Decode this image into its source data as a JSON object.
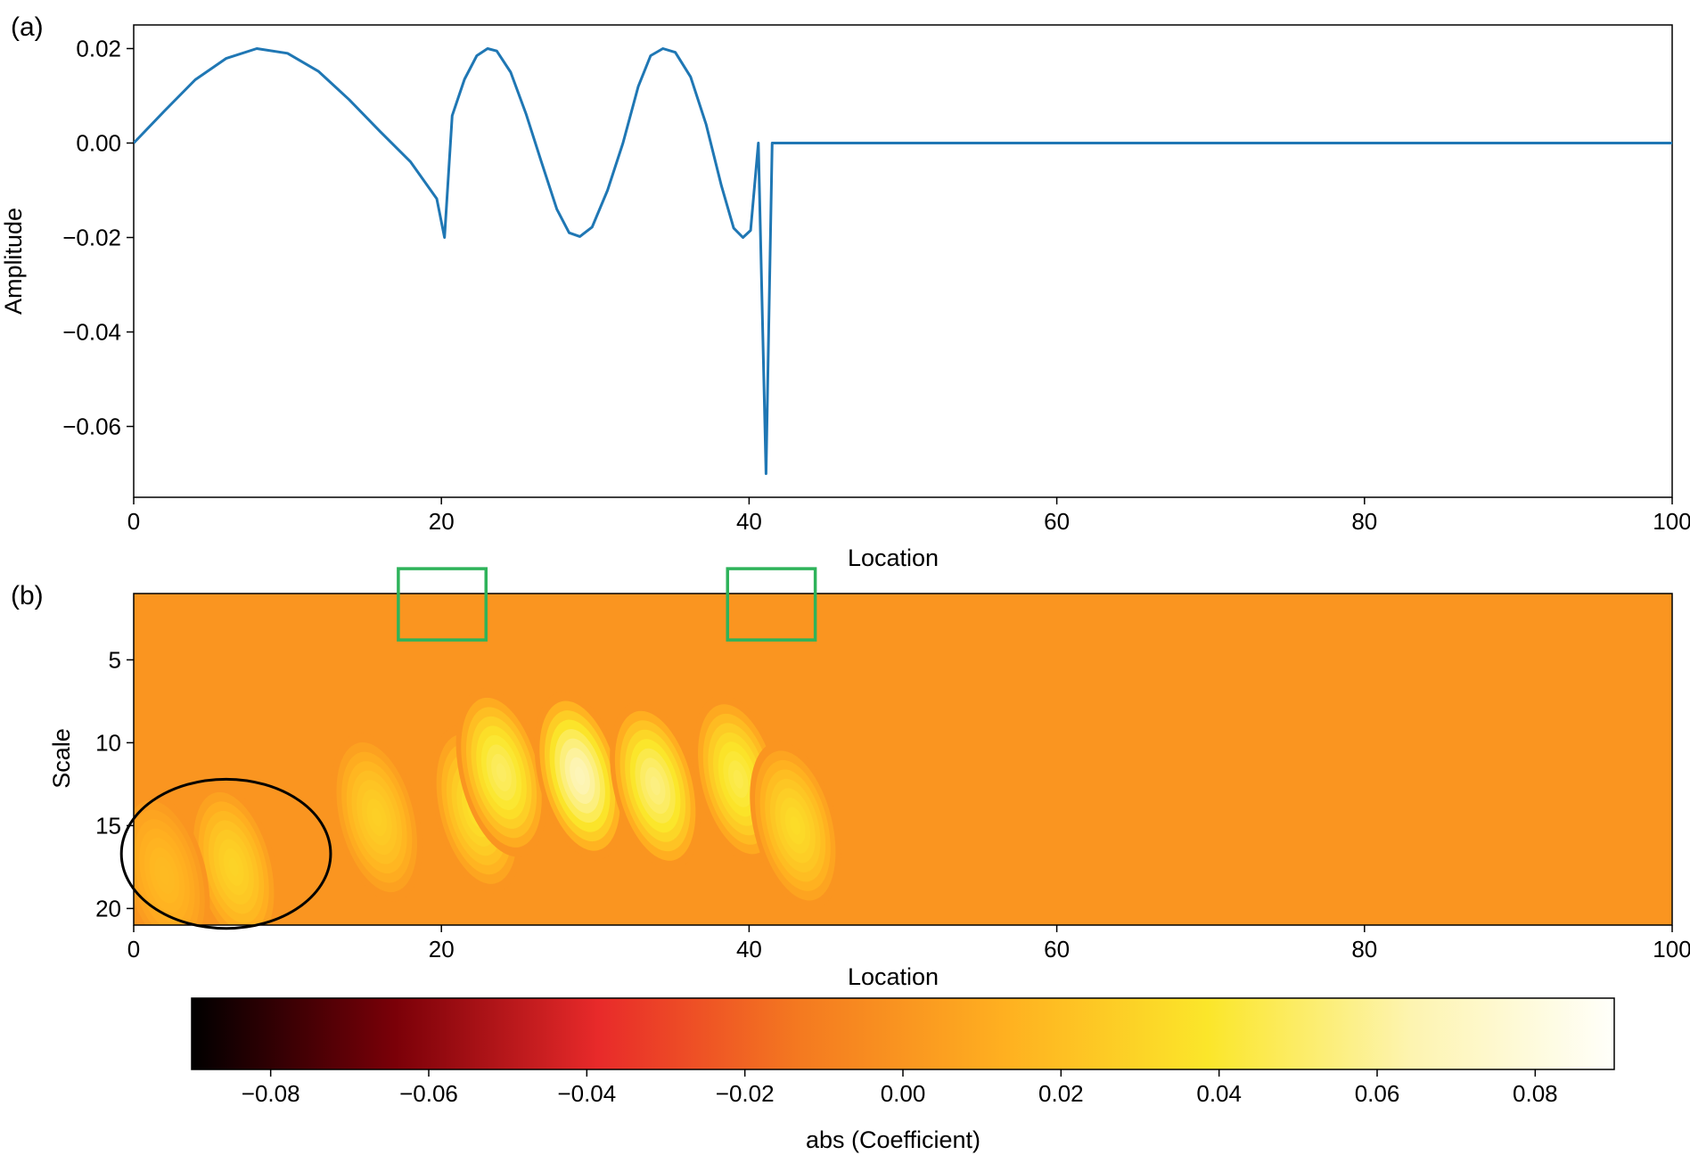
{
  "chart_data": [
    {
      "type": "line",
      "panel_label": "(a)",
      "xlabel": "Location",
      "ylabel": "Amplitude",
      "xlim": [
        0,
        100
      ],
      "ylim": [
        -0.075,
        0.025
      ],
      "x_ticks": [
        0,
        20,
        40,
        60,
        80,
        100
      ],
      "x_tick_labels": [
        "0",
        "20",
        "40",
        "60",
        "80",
        "100"
      ],
      "y_ticks": [
        0.02,
        0.0,
        -0.02,
        -0.04,
        -0.06
      ],
      "y_tick_labels": [
        "0.02",
        "0.00",
        "−0.02",
        "−0.04",
        "−0.06"
      ],
      "grid": false,
      "series": [
        {
          "color": "#1f77b4",
          "x": [
            0,
            2,
            4,
            6,
            8,
            10,
            12,
            14,
            16,
            18,
            19.7,
            20.2,
            20.7,
            21.5,
            22.3,
            23,
            23.6,
            24.5,
            25.5,
            26.5,
            27.5,
            28.3,
            29,
            29.8,
            30.8,
            31.8,
            32.8,
            33.6,
            34.4,
            35.2,
            36.2,
            37.2,
            38.2,
            39,
            39.6,
            40.1,
            40.6,
            41.1,
            41.5,
            45,
            50,
            60,
            70,
            80,
            90,
            100
          ],
          "y": [
            0.0,
            0.0068,
            0.0134,
            0.0179,
            0.02,
            0.019,
            0.0152,
            0.0092,
            0.0025,
            -0.004,
            -0.0118,
            -0.02,
            0.0058,
            0.0135,
            0.0185,
            0.02,
            0.0195,
            0.015,
            0.0062,
            -0.004,
            -0.014,
            -0.019,
            -0.0198,
            -0.0178,
            -0.01,
            0.0,
            0.012,
            0.0185,
            0.02,
            0.0192,
            0.014,
            0.004,
            -0.009,
            -0.018,
            -0.02,
            -0.0185,
            0.0,
            -0.07,
            0.0,
            0.0,
            0.0,
            0.0,
            0.0,
            0.0,
            0.0,
            0.0
          ]
        }
      ]
    },
    {
      "type": "heatmap",
      "panel_label": "(b)",
      "xlabel": "Location",
      "ylabel": "Scale",
      "xlim": [
        0,
        100
      ],
      "ylim": [
        21,
        1
      ],
      "x_ticks": [
        0,
        20,
        40,
        60,
        80,
        100
      ],
      "x_tick_labels": [
        "0",
        "20",
        "40",
        "60",
        "80",
        "100"
      ],
      "y_ticks": [
        5,
        10,
        15,
        20
      ],
      "y_tick_labels": [
        "5",
        "10",
        "15",
        "20"
      ],
      "colormap": "hot",
      "color_range": [
        -0.09,
        0.09
      ],
      "colorbar": {
        "label": "abs (Coefficient)",
        "ticks": [
          -0.08,
          -0.06,
          -0.04,
          -0.02,
          0.0,
          0.02,
          0.04,
          0.06,
          0.08
        ],
        "tick_labels": [
          "−0.08",
          "−0.06",
          "−0.04",
          "−0.02",
          "0.00",
          "0.02",
          "0.04",
          "0.06",
          "0.08"
        ],
        "stops": [
          "#000000",
          "#7a0008",
          "#e82a2a",
          "#f47a20",
          "#ffb020",
          "#fbe62a",
          "#fdf4b0",
          "#fffffa"
        ]
      },
      "annotations": [
        {
          "shape": "rectangle",
          "color": "#2eb35a",
          "x_range": [
            17.2,
            22.9
          ],
          "scale_range": [
            -0.5,
            3.8
          ]
        },
        {
          "shape": "rectangle",
          "color": "#2eb35a",
          "x_range": [
            38.6,
            44.3
          ],
          "scale_range": [
            -0.5,
            3.8
          ]
        },
        {
          "shape": "ellipse",
          "color": "#000000",
          "center": [
            6.0,
            16.7
          ],
          "radius_x": 6.8,
          "radius_y": 4.5
        }
      ],
      "blobs": [
        {
          "x": 15.8,
          "scale": 14.5,
          "peak": 0.028
        },
        {
          "x": 22.3,
          "scale": 14.0,
          "peak": 0.037
        },
        {
          "x": 23.9,
          "scale": 11.8,
          "peak": 0.05
        },
        {
          "x": 29.0,
          "scale": 12.0,
          "peak": 0.068
        },
        {
          "x": 33.9,
          "scale": 12.6,
          "peak": 0.056
        },
        {
          "x": 39.3,
          "scale": 12.2,
          "peak": 0.046
        },
        {
          "x": 43.0,
          "scale": 15.0,
          "peak": 0.034
        },
        {
          "x": 6.5,
          "scale": 17.5,
          "peak": 0.03
        },
        {
          "x": 2.0,
          "scale": 18.0,
          "peak": 0.018
        }
      ]
    }
  ]
}
